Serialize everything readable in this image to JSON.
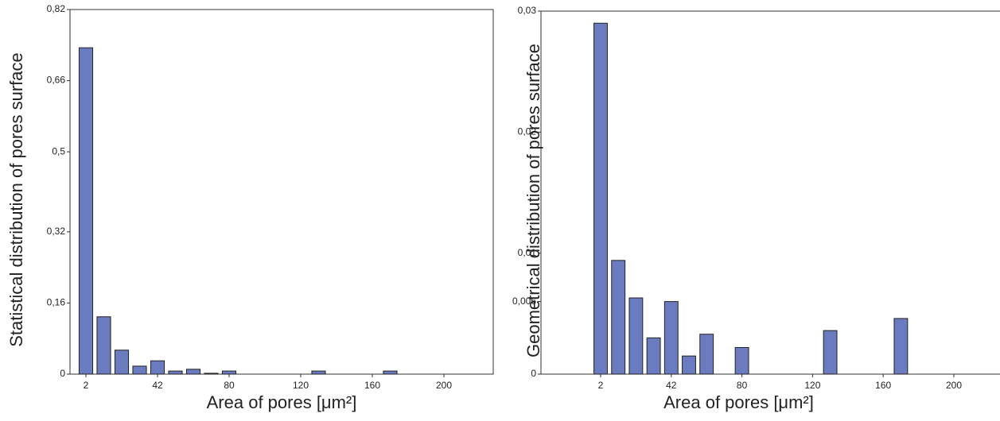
{
  "chart_data": [
    {
      "type": "bar",
      "y_label": "Statistical distribution of pores surface",
      "x_label": "Area of pores [μm²]",
      "categories": [
        "2",
        null,
        null,
        null,
        "42",
        null,
        null,
        null,
        "80",
        null,
        null,
        null,
        "120",
        null,
        null,
        null,
        "160",
        null,
        null,
        null,
        "200",
        null,
        null
      ],
      "values": [
        0.734,
        0.129,
        0.054,
        0.018,
        0.03,
        0.007,
        0.011,
        0.002,
        0.007,
        0,
        0,
        0,
        0,
        0.007,
        0,
        0,
        0,
        0.007,
        0,
        0,
        0,
        0,
        0
      ],
      "color": "#6b7bbf",
      "ylim": [
        0,
        0.82
      ],
      "yticks": [
        0,
        {
          "value": 0.16,
          "label": "0,16"
        },
        {
          "value": 0.32,
          "label": "0,32"
        },
        {
          "value": 0.5,
          "label": "0,5"
        },
        {
          "value": 0.66,
          "label": "0,66"
        },
        {
          "value": 0.82,
          "label": "0,82"
        }
      ]
    },
    {
      "type": "bar",
      "y_label": "Geometrical distribution of pores surface",
      "x_label": "Area of pores [μm²]",
      "categories": [
        "2",
        null,
        null,
        null,
        "42",
        null,
        null,
        null,
        "80",
        null,
        null,
        null,
        "120",
        null,
        null,
        null,
        "160",
        null,
        null,
        null,
        "200",
        null,
        null
      ],
      "values": [
        0.029,
        0.0094,
        0.0063,
        0.003,
        0.006,
        0.0015,
        0.0033,
        0,
        0.0022,
        0,
        0,
        0,
        0,
        0.0036,
        0,
        0,
        0,
        0.0046,
        0,
        0,
        0,
        0,
        0
      ],
      "color": "#6b7bbf",
      "ylim": [
        0,
        0.03
      ],
      "yticks": [
        0,
        {
          "value": 0.006,
          "label": "0,006"
        },
        {
          "value": 0.01,
          "label": "0,01"
        },
        {
          "value": 0.02,
          "label": "0,02"
        },
        {
          "value": 0.03,
          "label": "0,03"
        }
      ]
    }
  ]
}
